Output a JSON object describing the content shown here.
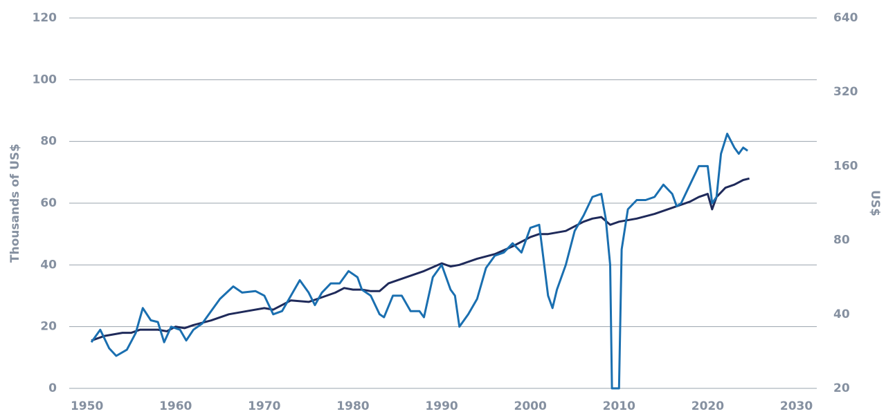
{
  "chart_data": {
    "type": "line",
    "y_label": "Thousands of US$",
    "y2_label": "US$",
    "xlim": [
      1948,
      2032.3
    ],
    "xticks": [
      1950,
      1960,
      1970,
      1980,
      1990,
      2000,
      2010,
      2020,
      2030
    ],
    "ylim": [
      0,
      120
    ],
    "yticks": [
      0,
      20,
      40,
      60,
      80,
      100,
      120
    ],
    "y2lim": [
      20,
      640
    ],
    "y2ticks": [
      20,
      40,
      80,
      160,
      320,
      640
    ],
    "y2_log": true,
    "grid": true,
    "series": [
      {
        "color": "#1f2a5a",
        "axis": "y",
        "x": [
          1950.5,
          1952,
          1954,
          1955,
          1956,
          1958,
          1959,
          1960,
          1961,
          1962,
          1964,
          1966,
          1968,
          1970,
          1971,
          1972,
          1973,
          1975,
          1976,
          1977,
          1978,
          1979,
          1980,
          1981,
          1982,
          1983,
          1984,
          1986,
          1988,
          1990,
          1991,
          1992,
          1994,
          1996,
          1998,
          2000,
          2001,
          2002,
          2004,
          2006,
          2007,
          2008,
          2009,
          2010,
          2012,
          2014,
          2016,
          2018,
          2019,
          2020,
          2020.5,
          2021,
          2022,
          2023,
          2024,
          2024.7
        ],
        "values": [
          15.5,
          17,
          18,
          18,
          19,
          19,
          18.5,
          20,
          19.5,
          20.5,
          22,
          24,
          25,
          26,
          25.5,
          27,
          28.5,
          28,
          29,
          30,
          31,
          32.5,
          32,
          32,
          31.5,
          31.5,
          34,
          36,
          38,
          40.5,
          39.5,
          40,
          42,
          43.5,
          46,
          49,
          50,
          50,
          51,
          54,
          55,
          55.5,
          53,
          54,
          55,
          56.5,
          58.5,
          60.5,
          62,
          63,
          58,
          62,
          65,
          66,
          67.5,
          68
        ]
      },
      {
        "color": "#1a6fb0",
        "axis": "y2",
        "x": [
          1950.5,
          1951.5,
          1952.5,
          1953.3,
          1954.5,
          1955.5,
          1956.3,
          1957.2,
          1958,
          1958.7,
          1959.5,
          1960.5,
          1961.2,
          1962,
          1963,
          1964,
          1965,
          1966.5,
          1967.5,
          1969,
          1970,
          1971,
          1972,
          1973,
          1974,
          1975,
          1975.7,
          1976.5,
          1977.5,
          1978.5,
          1979.5,
          1980.5,
          1981,
          1982,
          1983,
          1983.5,
          1984.5,
          1985.5,
          1986.5,
          1987.5,
          1988,
          1989,
          1990,
          1991,
          1991.5,
          1992,
          1993,
          1994,
          1995,
          1996,
          1997,
          1998,
          1999,
          2000,
          2001,
          2002,
          2002.5,
          2003,
          2004,
          2005,
          2006,
          2007,
          2008,
          2008.5,
          2009,
          2009.2,
          2010,
          2010.3,
          2011,
          2012,
          2013,
          2014,
          2015,
          2016,
          2016.5,
          2017,
          2018,
          2019,
          2020,
          2020.5,
          2021,
          2021.5,
          2022.2,
          2023,
          2023.5,
          2024,
          2024.5
        ],
        "values": [
          30.8,
          34.6,
          29.1,
          27.1,
          28.7,
          33.6,
          42.4,
          37.8,
          37.2,
          30.8,
          35.6,
          34.6,
          31.3,
          34.6,
          36.7,
          41.2,
          46.2,
          51.9,
          49.0,
          49.7,
          47.6,
          40,
          41.2,
          47.6,
          55.0,
          49.0,
          43.6,
          49.0,
          53.4,
          53.4,
          59.9,
          56.6,
          50.4,
          47.6,
          40,
          38.9,
          47.6,
          47.6,
          41.2,
          41.2,
          38.9,
          56.6,
          63.5,
          50.4,
          47.6,
          35.6,
          40,
          46.2,
          61.7,
          69.2,
          71.3,
          77.7,
          71.3,
          89.8,
          92.4,
          47.6,
          42.4,
          50.4,
          63.5,
          87.2,
          100.8,
          119.9,
          123.4,
          97.9,
          63.5,
          20,
          20,
          73.4,
          106.8,
          116.5,
          116.5,
          119.9,
          134.5,
          123.4,
          109.9,
          113.1,
          134.5,
          160,
          160,
          113.1,
          119.9,
          179.6,
          216.6,
          190.3,
          179.6,
          190.3,
          184.8
        ]
      }
    ]
  }
}
